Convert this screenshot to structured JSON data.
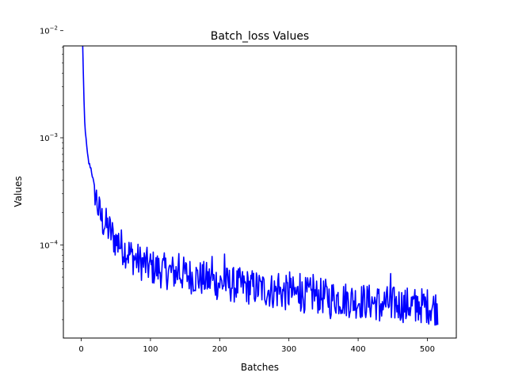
{
  "chart_data": {
    "type": "line",
    "title": "Batch_loss Values",
    "xlabel": "Batches",
    "ylabel": "Values",
    "x_scale": "linear",
    "y_scale": "log",
    "xlim": [
      -25.8,
      541.8
    ],
    "ylim": [
      1.35e-05,
      0.0072
    ],
    "x_ticks": [
      0,
      100,
      200,
      300,
      400,
      500
    ],
    "x_tick_labels": [
      "0",
      "100",
      "200",
      "300",
      "400",
      "500"
    ],
    "y_major_ticks": [
      0.0001,
      0.001,
      0.01
    ],
    "y_tick_labels": [
      {
        "base": "10",
        "exp": "−4"
      },
      {
        "base": "10",
        "exp": "−3"
      },
      {
        "base": "10",
        "exp": "−2"
      }
    ],
    "grid": false,
    "legend": "none",
    "series": [
      {
        "color": "#0000ff",
        "anchors": [
          [
            0,
            0.048
          ],
          [
            1,
            0.021
          ],
          [
            2,
            0.0078
          ],
          [
            3,
            0.0039
          ],
          [
            4,
            0.0022
          ],
          [
            5,
            0.0014
          ],
          [
            7,
            0.00095
          ],
          [
            9,
            0.0007
          ],
          [
            11,
            0.00058
          ],
          [
            14,
            0.00052
          ],
          [
            17,
            0.00041
          ],
          [
            20,
            0.00032
          ],
          [
            25,
            0.00021
          ],
          [
            30,
            0.00017
          ],
          [
            40,
            0.00014
          ],
          [
            50,
            0.000108
          ],
          [
            60,
            9.5e-05
          ],
          [
            70,
            8.2e-05
          ],
          [
            80,
            7.2e-05
          ],
          [
            100,
            6.2e-05
          ],
          [
            120,
            5.7e-05
          ],
          [
            150,
            5.3e-05
          ],
          [
            200,
            4.4e-05
          ],
          [
            250,
            4e-05
          ],
          [
            300,
            3.5e-05
          ],
          [
            350,
            3.3e-05
          ],
          [
            400,
            3e-05
          ],
          [
            450,
            2.8e-05
          ],
          [
            500,
            2.7e-05
          ],
          [
            515,
            2.6e-05
          ]
        ],
        "spikes": [
          [
            54,
            0.000128
          ],
          [
            141,
            8.3e-05
          ],
          [
            189,
            7.8e-05
          ],
          [
            207,
            8.2e-05
          ],
          [
            285,
            5.4e-05
          ],
          [
            301,
            5.6e-05
          ],
          [
            316,
            5.4e-05
          ],
          [
            335,
            5.3e-05
          ],
          [
            447,
            5.4e-05
          ],
          [
            360,
            2.05e-05
          ],
          [
            431,
            1.95e-05
          ],
          [
            448,
            2.1e-05
          ],
          [
            469,
            2.05e-05
          ],
          [
            483,
            1.95e-05
          ]
        ],
        "noise_amplitude": 0.17,
        "n_points": 516
      }
    ]
  }
}
